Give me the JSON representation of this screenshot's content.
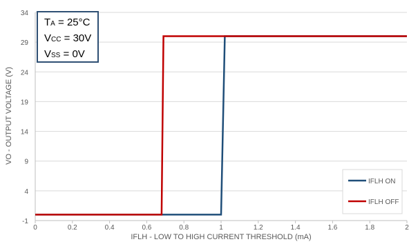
{
  "chart_data": {
    "type": "line",
    "xlabel": "IFLH - LOW TO HIGH CURRENT THRESHOLD (mA)",
    "ylabel": "VO - OUTPUT VOLTAGE (V)",
    "xlim": [
      0,
      2
    ],
    "ylim": [
      -1,
      34
    ],
    "x_ticks": [
      "0",
      "0.2",
      "0.4",
      "0.6",
      "0.8",
      "1",
      "1.2",
      "1.4",
      "1.6",
      "1.8",
      "2"
    ],
    "y_ticks": [
      "-1",
      "4",
      "9",
      "14",
      "19",
      "24",
      "29",
      "34"
    ],
    "grid": "horizontal",
    "legend_position": "bottom-right",
    "series": [
      {
        "name": "IFLH ON",
        "color": "#1F4E79",
        "x": [
          0,
          1.0,
          1.0,
          1.02,
          2.0
        ],
        "y": [
          0,
          0,
          0,
          30,
          30
        ]
      },
      {
        "name": "IFLH OFF",
        "color": "#C00000",
        "x": [
          0,
          0.68,
          0.68,
          0.69,
          2.0
        ],
        "y": [
          0,
          0,
          0,
          30,
          30
        ]
      }
    ],
    "conditions": {
      "ta": {
        "main": "T",
        "sub": "A",
        "rest": " = 25°C"
      },
      "vcc": {
        "main": "V",
        "sub": "CC",
        "rest": " = 30V"
      },
      "vss": {
        "main": "V",
        "sub": "SS",
        "rest": " = 0V"
      }
    }
  }
}
